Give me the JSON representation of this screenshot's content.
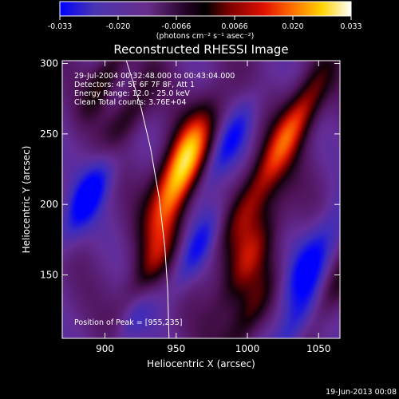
{
  "chart_data": {
    "type": "heatmap",
    "title": "Reconstructed RHESSI Image",
    "xlabel": "Heliocentric X (arcsec)",
    "ylabel": "Heliocentric Y (arcsec)",
    "xlim": [
      870,
      1065
    ],
    "ylim": [
      105,
      302
    ],
    "x_ticks": [
      {
        "value": 900,
        "label": "900"
      },
      {
        "value": 950,
        "label": "950"
      },
      {
        "value": 1000,
        "label": "1000"
      },
      {
        "value": 1050,
        "label": "1050"
      }
    ],
    "y_ticks": [
      {
        "value": 150,
        "label": "150"
      },
      {
        "value": 200,
        "label": "200"
      },
      {
        "value": 250,
        "label": "250"
      },
      {
        "value": 300,
        "label": "300"
      }
    ],
    "colorbar": {
      "range": [
        -0.033,
        0.033
      ],
      "ticks": [
        "-0.033",
        "-0.020",
        "-0.0066",
        "0.0066",
        "0.020",
        "0.033"
      ],
      "unit_label": "(photons cm⁻² s⁻¹ asec⁻²)",
      "colormap": [
        "#0000ff",
        "#5030a8",
        "#6a2e8c",
        "#300030",
        "#000000",
        "#7a0000",
        "#e01000",
        "#ff7000",
        "#ffd400",
        "#ffffd0",
        "#ffffff"
      ]
    },
    "annotations": [
      "29-Jul-2004 00:32:48.000 to 00:43:04.000",
      "Detectors: 4F 5F 6F 7F 8F, Att 1",
      "Energy Range: 12.0 - 25.0 keV",
      "Clean    Total counts: 3.76E+04"
    ],
    "peak_label": "Position of Peak = [955,235]",
    "peak": [
      955,
      235
    ],
    "limb_line": true,
    "generated": "19-Jun-2013 00:08"
  }
}
